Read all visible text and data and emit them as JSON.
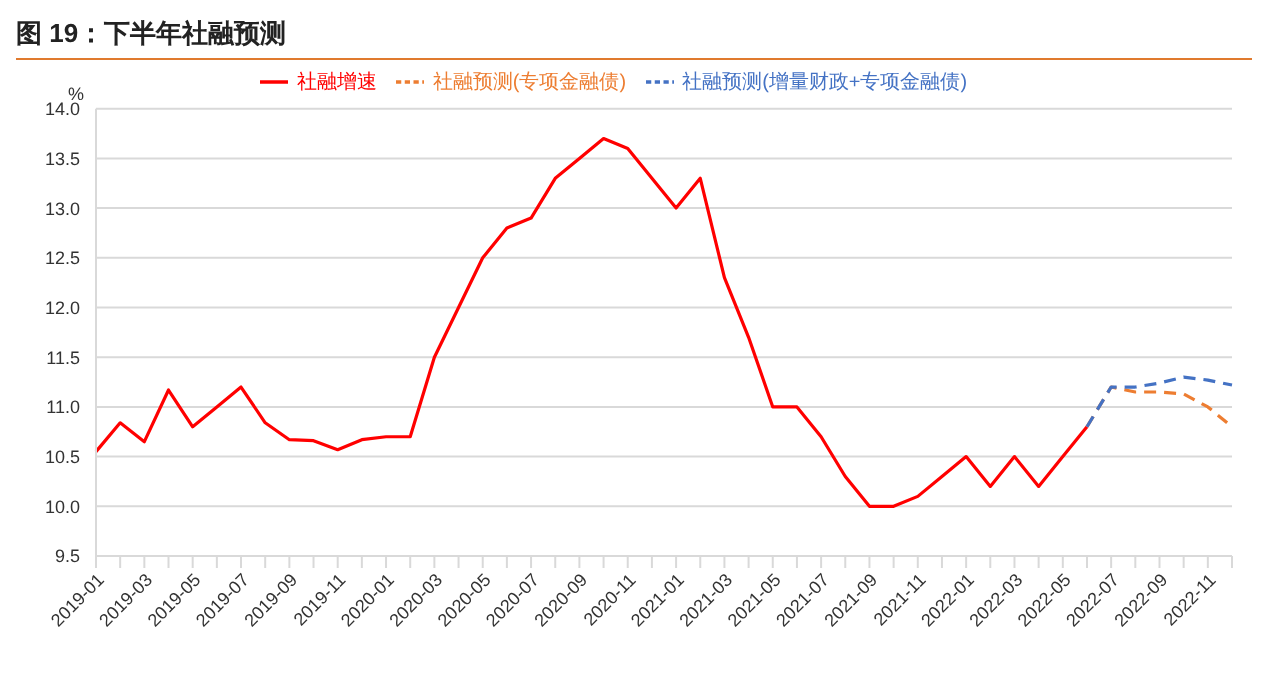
{
  "chart_data": {
    "type": "line",
    "title": "图 19：下半年社融预测",
    "ylabel": "%",
    "categories": [
      "2019-01",
      null,
      "2019-03",
      null,
      "2019-05",
      null,
      "2019-07",
      null,
      "2019-09",
      null,
      "2019-11",
      null,
      "2020-01",
      null,
      "2020-03",
      null,
      "2020-05",
      null,
      "2020-07",
      null,
      "2020-09",
      null,
      "2020-11",
      null,
      "2021-01",
      null,
      "2021-03",
      null,
      "2021-05",
      null,
      "2021-07",
      null,
      "2021-09",
      null,
      "2021-11",
      null,
      "2022-01",
      null,
      "2022-03",
      null,
      "2022-05",
      null,
      "2022-07",
      null,
      "2022-09",
      null,
      "2022-11",
      null
    ],
    "series": [
      {
        "name": "社融增速",
        "color": "#ff0000",
        "line_style": "solid",
        "values": [
          10.55,
          10.84,
          10.65,
          11.17,
          10.8,
          11.0,
          11.2,
          10.84,
          10.67,
          10.66,
          10.57,
          10.67,
          10.7,
          10.7,
          11.5,
          12.0,
          12.5,
          12.8,
          12.9,
          13.3,
          13.5,
          13.7,
          13.6,
          13.3,
          13.0,
          13.3,
          12.3,
          11.7,
          11.0,
          11.0,
          10.7,
          10.3,
          10.0,
          10.0,
          10.1,
          10.3,
          10.5,
          10.2,
          10.5,
          10.2,
          10.5,
          10.8,
          null,
          null,
          null,
          null,
          null,
          null
        ]
      },
      {
        "name": "社融预测(专项金融债)",
        "color": "#ed7d31",
        "line_style": "dashed",
        "values": [
          null,
          null,
          null,
          null,
          null,
          null,
          null,
          null,
          null,
          null,
          null,
          null,
          null,
          null,
          null,
          null,
          null,
          null,
          null,
          null,
          null,
          null,
          null,
          null,
          null,
          null,
          null,
          null,
          null,
          null,
          null,
          null,
          null,
          null,
          null,
          null,
          null,
          null,
          null,
          null,
          null,
          10.8,
          11.2,
          11.15,
          11.15,
          11.13,
          11.0,
          10.8
        ]
      },
      {
        "name": "社融预测(增量财政+专项金融债)",
        "color": "#4472c4",
        "line_style": "dashed",
        "values": [
          null,
          null,
          null,
          null,
          null,
          null,
          null,
          null,
          null,
          null,
          null,
          null,
          null,
          null,
          null,
          null,
          null,
          null,
          null,
          null,
          null,
          null,
          null,
          null,
          null,
          null,
          null,
          null,
          null,
          null,
          null,
          null,
          null,
          null,
          null,
          null,
          null,
          null,
          null,
          null,
          null,
          10.8,
          11.2,
          11.2,
          11.24,
          11.3,
          11.27,
          11.22
        ]
      }
    ],
    "ylim": [
      9.5,
      14.0
    ],
    "yticks": [
      {
        "value": 9.5,
        "label": "9.5"
      },
      {
        "value": 10,
        "label": "10.0"
      },
      {
        "value": 10.5,
        "label": "10.5"
      },
      {
        "value": 11,
        "label": "11.0"
      },
      {
        "value": 11.5,
        "label": "11.5"
      },
      {
        "value": 12,
        "label": "12.0"
      },
      {
        "value": 12.5,
        "label": "12.5"
      },
      {
        "value": 13,
        "label": "13.0"
      },
      {
        "value": 13.5,
        "label": "13.5"
      },
      {
        "value": 14,
        "label": "14.0"
      }
    ],
    "grid": "y",
    "legend": "top",
    "marker": "none"
  }
}
